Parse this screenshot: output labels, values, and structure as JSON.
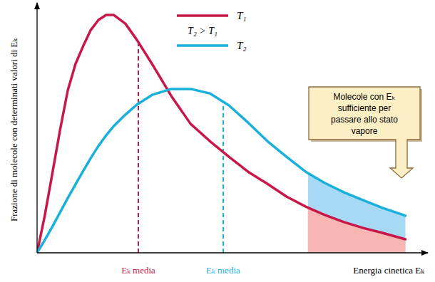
{
  "chart_data": {
    "type": "line",
    "x_label": "Energia cinetica Eₖ",
    "y_label": "Frazione di molecole con determinati valori di Eₖ",
    "x": [
      0,
      2,
      4,
      6,
      8,
      10,
      12,
      14,
      16,
      18,
      20,
      23,
      26,
      30,
      35,
      40,
      45,
      50,
      55,
      60,
      65,
      70,
      75,
      80,
      85,
      90,
      96
    ],
    "series": [
      {
        "name": "T₁",
        "color": "#c8184a",
        "values": [
          0,
          15.1,
          32.5,
          50.1,
          66.1,
          76.8,
          84.1,
          90.7,
          94.8,
          96.8,
          96.8,
          93.3,
          86.7,
          76.8,
          63.8,
          52.5,
          45.5,
          39.1,
          33.0,
          28.1,
          22.9,
          18.8,
          15.4,
          12.5,
          10.1,
          8.1,
          5.5
        ]
      },
      {
        "name": "T₂",
        "color": "#1ab0dc",
        "values": [
          0,
          5.2,
          10.7,
          16.5,
          22.3,
          27.8,
          33.3,
          38.6,
          43.5,
          47.8,
          51.6,
          56.2,
          60.3,
          64.3,
          66.7,
          66.7,
          64.9,
          60.0,
          53.0,
          45.5,
          39.1,
          33.0,
          28.4,
          24.6,
          21.4,
          18.3,
          15.1
        ]
      }
    ],
    "xlim": [
      0,
      100
    ],
    "ylim": [
      0,
      100
    ],
    "tick_labels": false,
    "grid": false,
    "legend": "top",
    "legend_note": "T₂ > T₁",
    "means": [
      {
        "label": "Eₖ media",
        "value": 26.4
      },
      {
        "label": "Eₖ media",
        "value": 48.5
      }
    ],
    "shade_from": 70.6,
    "callout": [
      "Molecole con Eₖ",
      "sufficiente per",
      "passare allo stato",
      "vapore"
    ]
  }
}
